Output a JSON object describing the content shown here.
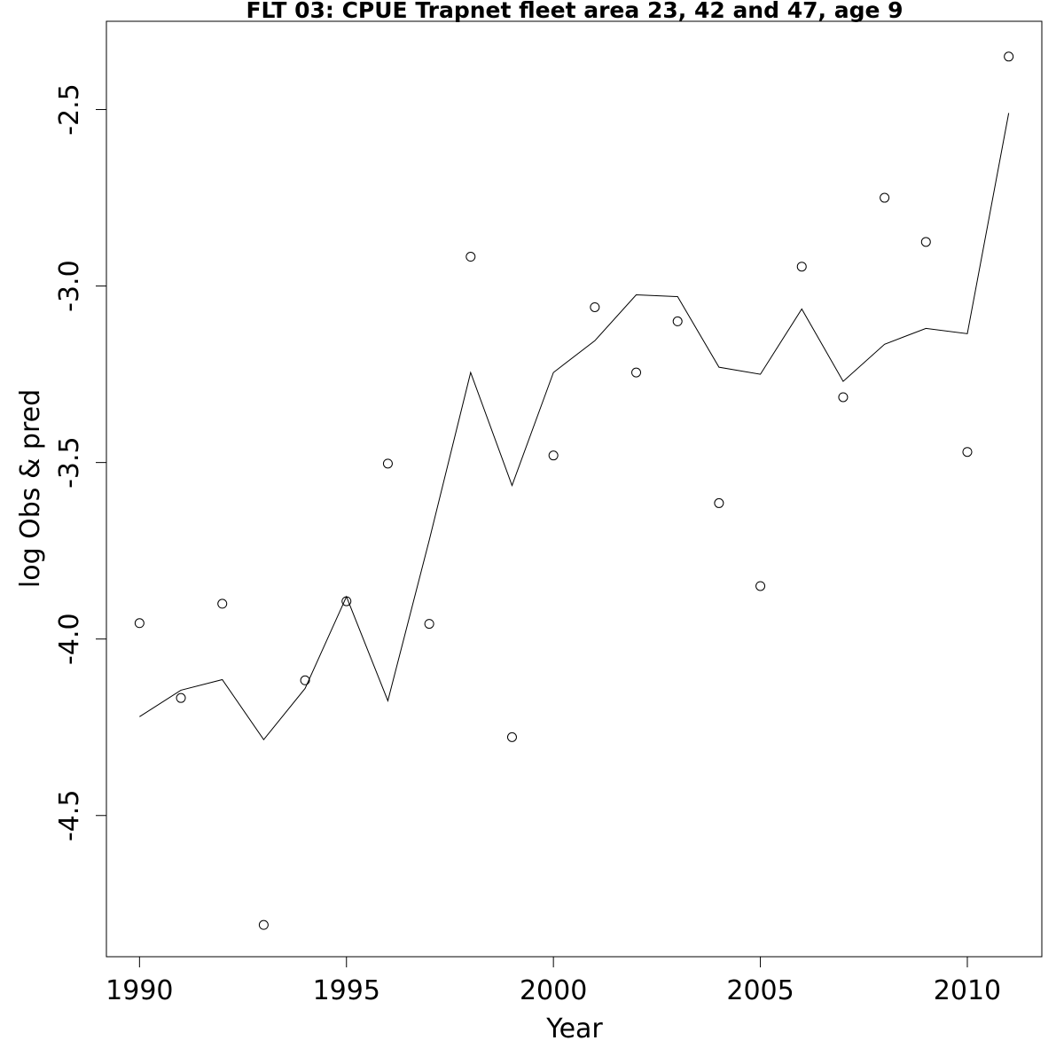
{
  "chart_data": {
    "type": "line",
    "title": "FLT 03: CPUE Trapnet fleet area 23, 42 and 47, age 9",
    "xlabel": "Year",
    "ylabel": "log Obs & pred",
    "xlim": [
      1989.2,
      2011.8
    ],
    "ylim": [
      -4.9,
      -2.25
    ],
    "x_ticks": [
      1990,
      1995,
      2000,
      2005,
      2010
    ],
    "y_ticks": [
      -4.5,
      -4.0,
      -3.5,
      -3.0,
      -2.5
    ],
    "x_tick_labels": [
      "1990",
      "1995",
      "2000",
      "2005",
      "2010"
    ],
    "y_tick_labels": [
      "-4.5",
      "-4.0",
      "-3.5",
      "-3.0",
      "-2.5"
    ],
    "grid": false,
    "legend": "none",
    "x": [
      1990,
      1991,
      1992,
      1993,
      1994,
      1995,
      1996,
      1997,
      1998,
      1999,
      2000,
      2001,
      2002,
      2003,
      2004,
      2005,
      2006,
      2007,
      2008,
      2009,
      2010,
      2011
    ],
    "series": [
      {
        "kind": "points",
        "values": [
          -3.955,
          -4.167,
          -3.9,
          -4.81,
          -4.117,
          -3.893,
          -3.503,
          -3.957,
          -2.917,
          -4.278,
          -3.48,
          -3.06,
          -3.245,
          -3.1,
          -3.615,
          -3.85,
          -2.945,
          -3.315,
          -2.75,
          -2.875,
          -3.47,
          -2.35
        ]
      },
      {
        "kind": "line",
        "values": [
          -4.22,
          -4.145,
          -4.115,
          -4.285,
          -4.14,
          -3.88,
          -4.175,
          -3.72,
          -3.245,
          -3.565,
          -3.245,
          -3.155,
          -3.025,
          -3.03,
          -3.23,
          -3.25,
          -3.065,
          -3.27,
          -3.165,
          -3.12,
          -3.135,
          -2.51
        ]
      }
    ]
  }
}
